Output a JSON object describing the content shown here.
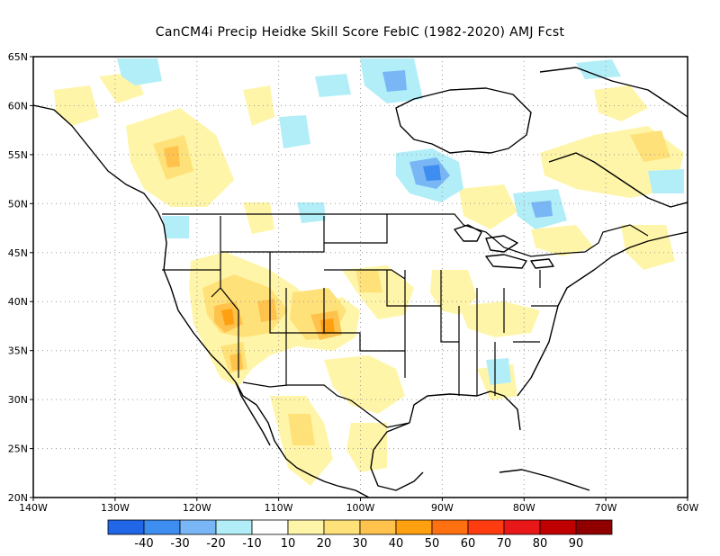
{
  "title": "CanCM4i Precip Heidke Skill Score FebIC (1982-2020) AMJ Fcst",
  "lat_ticks": [
    "65N",
    "60N",
    "55N",
    "50N",
    "45N",
    "40N",
    "35N",
    "30N",
    "25N",
    "20N"
  ],
  "lon_ticks": [
    "140W",
    "130W",
    "120W",
    "110W",
    "100W",
    "90W",
    "80W",
    "70W",
    "60W"
  ],
  "colorbar": {
    "colors": [
      "#2166e6",
      "#3d8ef0",
      "#78b6f6",
      "#b2eef8",
      "#ffffff",
      "#fff5a8",
      "#ffe17a",
      "#ffc24c",
      "#ffa010",
      "#ff7010",
      "#ff3c10",
      "#e81818",
      "#c00000",
      "#900000"
    ],
    "labels": [
      "-40",
      "-30",
      "-20",
      "-10",
      "10",
      "20",
      "30",
      "40",
      "50",
      "60",
      "70",
      "80",
      "90"
    ]
  },
  "map_extent": {
    "lon": [
      -140,
      -60
    ],
    "lat": [
      20,
      65
    ]
  }
}
